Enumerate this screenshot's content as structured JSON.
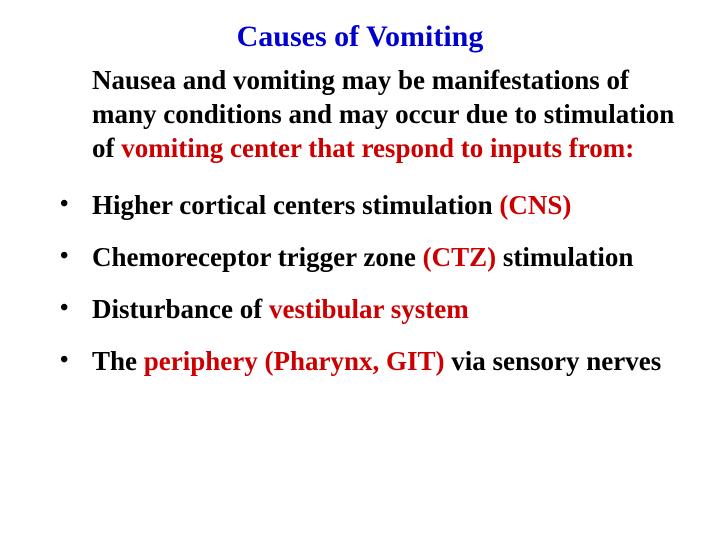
{
  "colors": {
    "background": "#ffffff",
    "text": "#000000",
    "accent_blue": "#0000cc",
    "accent_red": "#cc0000"
  },
  "typography": {
    "family": "Times New Roman",
    "title_size_pt": 30,
    "body_size_pt": 27,
    "title_weight": "bold",
    "body_weight": "bold"
  },
  "title": "Causes of Vomiting",
  "intro": {
    "part1": "Nausea  and vomiting may be manifestations of many conditions and may occur due to stimulation of ",
    "part2": "vomiting center that respond to inputs from:"
  },
  "bullets": [
    {
      "prefix": "Higher cortical centers stimulation ",
      "highlight": "(CNS)",
      "suffix": "",
      "normal_weight": false
    },
    {
      "prefix": "Chemoreceptor trigger zone ",
      "highlight": "(CTZ)",
      "suffix": " stimulation",
      "normal_weight": true
    },
    {
      "prefix": "Disturbance of ",
      "highlight": "vestibular system",
      "suffix": "",
      "normal_weight": false
    },
    {
      "prefix": "The ",
      "highlight": "periphery (Pharynx, GIT) ",
      "suffix": "via sensory nerves",
      "normal_weight": false
    }
  ]
}
